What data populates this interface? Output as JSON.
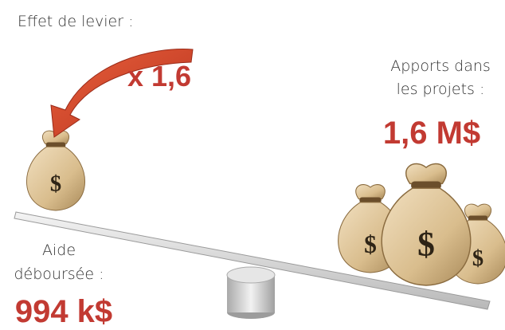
{
  "leverage": {
    "label": "Effet de levier :",
    "factor": "x 1,6"
  },
  "contributions": {
    "label_lines": [
      "Apports dans",
      "les projets :"
    ],
    "amount": "1,6 M$"
  },
  "aid": {
    "label_lines": [
      "Aide",
      "déboursée :"
    ],
    "amount": "994 k$"
  },
  "bag_symbol": "$"
}
